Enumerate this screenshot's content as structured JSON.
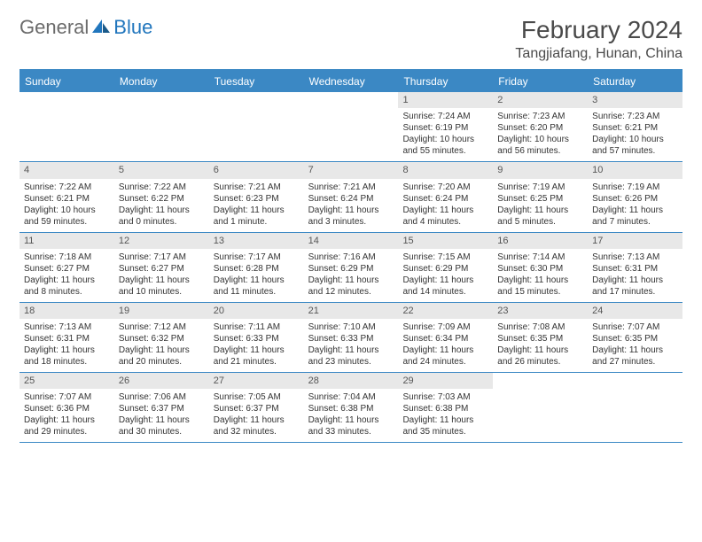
{
  "brand": {
    "part1": "General",
    "part2": "Blue"
  },
  "title": "February 2024",
  "location": "Tangjiafang, Hunan, China",
  "colors": {
    "header_bg": "#3b88c4",
    "header_text": "#ffffff",
    "daynum_bg": "#e8e8e8",
    "text": "#333333",
    "brand_gray": "#6b6b6b",
    "brand_blue": "#2176bd"
  },
  "typography": {
    "title_fontsize": 28,
    "location_fontsize": 16,
    "dayhead_fontsize": 12,
    "cell_fontsize": 10
  },
  "day_headers": [
    "Sunday",
    "Monday",
    "Tuesday",
    "Wednesday",
    "Thursday",
    "Friday",
    "Saturday"
  ],
  "weeks": [
    [
      null,
      null,
      null,
      null,
      {
        "n": "1",
        "sr": "Sunrise: 7:24 AM",
        "ss": "Sunset: 6:19 PM",
        "dl": "Daylight: 10 hours and 55 minutes."
      },
      {
        "n": "2",
        "sr": "Sunrise: 7:23 AM",
        "ss": "Sunset: 6:20 PM",
        "dl": "Daylight: 10 hours and 56 minutes."
      },
      {
        "n": "3",
        "sr": "Sunrise: 7:23 AM",
        "ss": "Sunset: 6:21 PM",
        "dl": "Daylight: 10 hours and 57 minutes."
      }
    ],
    [
      {
        "n": "4",
        "sr": "Sunrise: 7:22 AM",
        "ss": "Sunset: 6:21 PM",
        "dl": "Daylight: 10 hours and 59 minutes."
      },
      {
        "n": "5",
        "sr": "Sunrise: 7:22 AM",
        "ss": "Sunset: 6:22 PM",
        "dl": "Daylight: 11 hours and 0 minutes."
      },
      {
        "n": "6",
        "sr": "Sunrise: 7:21 AM",
        "ss": "Sunset: 6:23 PM",
        "dl": "Daylight: 11 hours and 1 minute."
      },
      {
        "n": "7",
        "sr": "Sunrise: 7:21 AM",
        "ss": "Sunset: 6:24 PM",
        "dl": "Daylight: 11 hours and 3 minutes."
      },
      {
        "n": "8",
        "sr": "Sunrise: 7:20 AM",
        "ss": "Sunset: 6:24 PM",
        "dl": "Daylight: 11 hours and 4 minutes."
      },
      {
        "n": "9",
        "sr": "Sunrise: 7:19 AM",
        "ss": "Sunset: 6:25 PM",
        "dl": "Daylight: 11 hours and 5 minutes."
      },
      {
        "n": "10",
        "sr": "Sunrise: 7:19 AM",
        "ss": "Sunset: 6:26 PM",
        "dl": "Daylight: 11 hours and 7 minutes."
      }
    ],
    [
      {
        "n": "11",
        "sr": "Sunrise: 7:18 AM",
        "ss": "Sunset: 6:27 PM",
        "dl": "Daylight: 11 hours and 8 minutes."
      },
      {
        "n": "12",
        "sr": "Sunrise: 7:17 AM",
        "ss": "Sunset: 6:27 PM",
        "dl": "Daylight: 11 hours and 10 minutes."
      },
      {
        "n": "13",
        "sr": "Sunrise: 7:17 AM",
        "ss": "Sunset: 6:28 PM",
        "dl": "Daylight: 11 hours and 11 minutes."
      },
      {
        "n": "14",
        "sr": "Sunrise: 7:16 AM",
        "ss": "Sunset: 6:29 PM",
        "dl": "Daylight: 11 hours and 12 minutes."
      },
      {
        "n": "15",
        "sr": "Sunrise: 7:15 AM",
        "ss": "Sunset: 6:29 PM",
        "dl": "Daylight: 11 hours and 14 minutes."
      },
      {
        "n": "16",
        "sr": "Sunrise: 7:14 AM",
        "ss": "Sunset: 6:30 PM",
        "dl": "Daylight: 11 hours and 15 minutes."
      },
      {
        "n": "17",
        "sr": "Sunrise: 7:13 AM",
        "ss": "Sunset: 6:31 PM",
        "dl": "Daylight: 11 hours and 17 minutes."
      }
    ],
    [
      {
        "n": "18",
        "sr": "Sunrise: 7:13 AM",
        "ss": "Sunset: 6:31 PM",
        "dl": "Daylight: 11 hours and 18 minutes."
      },
      {
        "n": "19",
        "sr": "Sunrise: 7:12 AM",
        "ss": "Sunset: 6:32 PM",
        "dl": "Daylight: 11 hours and 20 minutes."
      },
      {
        "n": "20",
        "sr": "Sunrise: 7:11 AM",
        "ss": "Sunset: 6:33 PM",
        "dl": "Daylight: 11 hours and 21 minutes."
      },
      {
        "n": "21",
        "sr": "Sunrise: 7:10 AM",
        "ss": "Sunset: 6:33 PM",
        "dl": "Daylight: 11 hours and 23 minutes."
      },
      {
        "n": "22",
        "sr": "Sunrise: 7:09 AM",
        "ss": "Sunset: 6:34 PM",
        "dl": "Daylight: 11 hours and 24 minutes."
      },
      {
        "n": "23",
        "sr": "Sunrise: 7:08 AM",
        "ss": "Sunset: 6:35 PM",
        "dl": "Daylight: 11 hours and 26 minutes."
      },
      {
        "n": "24",
        "sr": "Sunrise: 7:07 AM",
        "ss": "Sunset: 6:35 PM",
        "dl": "Daylight: 11 hours and 27 minutes."
      }
    ],
    [
      {
        "n": "25",
        "sr": "Sunrise: 7:07 AM",
        "ss": "Sunset: 6:36 PM",
        "dl": "Daylight: 11 hours and 29 minutes."
      },
      {
        "n": "26",
        "sr": "Sunrise: 7:06 AM",
        "ss": "Sunset: 6:37 PM",
        "dl": "Daylight: 11 hours and 30 minutes."
      },
      {
        "n": "27",
        "sr": "Sunrise: 7:05 AM",
        "ss": "Sunset: 6:37 PM",
        "dl": "Daylight: 11 hours and 32 minutes."
      },
      {
        "n": "28",
        "sr": "Sunrise: 7:04 AM",
        "ss": "Sunset: 6:38 PM",
        "dl": "Daylight: 11 hours and 33 minutes."
      },
      {
        "n": "29",
        "sr": "Sunrise: 7:03 AM",
        "ss": "Sunset: 6:38 PM",
        "dl": "Daylight: 11 hours and 35 minutes."
      },
      null,
      null
    ]
  ]
}
